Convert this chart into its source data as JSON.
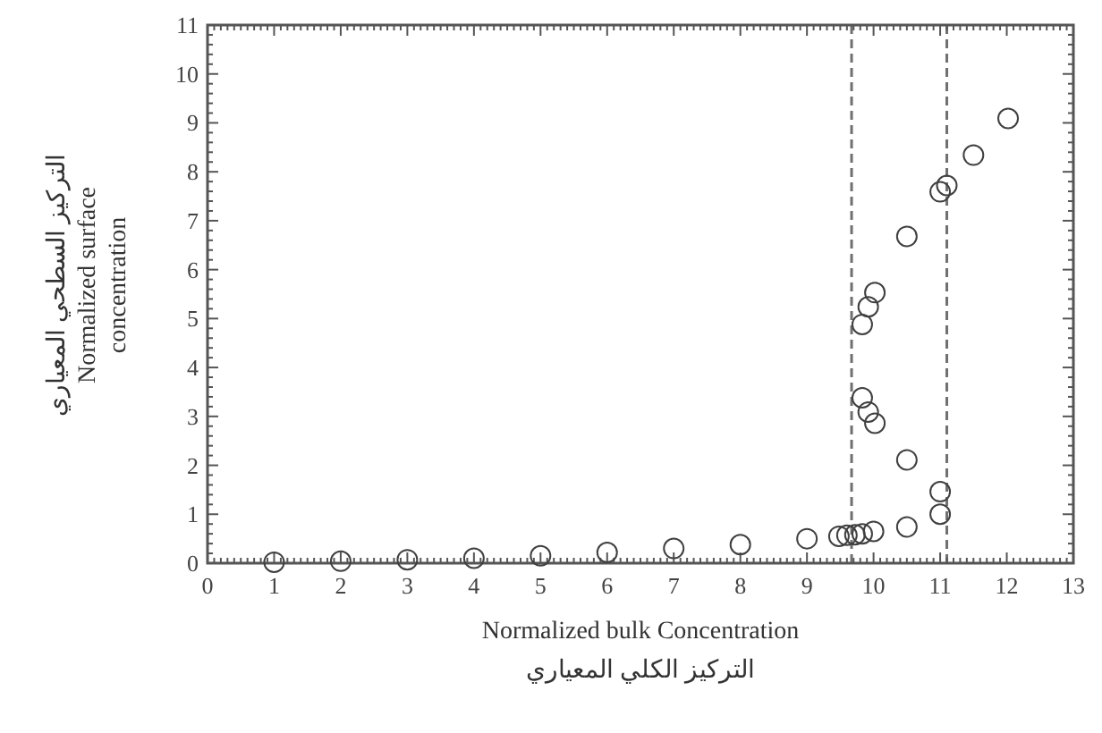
{
  "chart_data": {
    "type": "scatter",
    "xlabel": "Normalized bulk Concentration\nالتركيز الكلي المعياري",
    "ylabel": "التركيز السطحي المعياري\nNormalized surface\nconcentration",
    "x": [
      1,
      2,
      3,
      4,
      5,
      6,
      7,
      8,
      9,
      9.48,
      9.6,
      9.72,
      9.83,
      10.0,
      9.83,
      9.92,
      10.02,
      9.83,
      9.92,
      10.02,
      10.5,
      10.5,
      10.5,
      11.0,
      11.0,
      11.0,
      11.1,
      11.5,
      12.02
    ],
    "series": [
      {
        "color": "#404040",
        "values": [
          0.02,
          0.04,
          0.07,
          0.1,
          0.15,
          0.22,
          0.3,
          0.38,
          0.5,
          0.55,
          0.57,
          0.58,
          0.6,
          0.65,
          4.88,
          5.24,
          5.53,
          3.38,
          3.09,
          2.86,
          6.68,
          2.11,
          0.74,
          1.0,
          1.46,
          7.59,
          7.72,
          8.34,
          9.09
        ]
      }
    ],
    "marker": "circle",
    "xlim": [
      0,
      13
    ],
    "ylim": [
      0,
      11
    ],
    "xticks": [
      0,
      1,
      2,
      3,
      4,
      5,
      6,
      7,
      8,
      9,
      10,
      11,
      12,
      13
    ],
    "yticks": [
      0,
      1,
      2,
      3,
      4,
      5,
      6,
      7,
      8,
      9,
      10,
      11
    ],
    "ref_lines": [
      {
        "axis": "x",
        "value": 9.67,
        "color": "#707070",
        "line_style": "dashed"
      },
      {
        "axis": "x",
        "value": 11.1,
        "color": "#707070",
        "line_style": "dashed"
      }
    ]
  }
}
